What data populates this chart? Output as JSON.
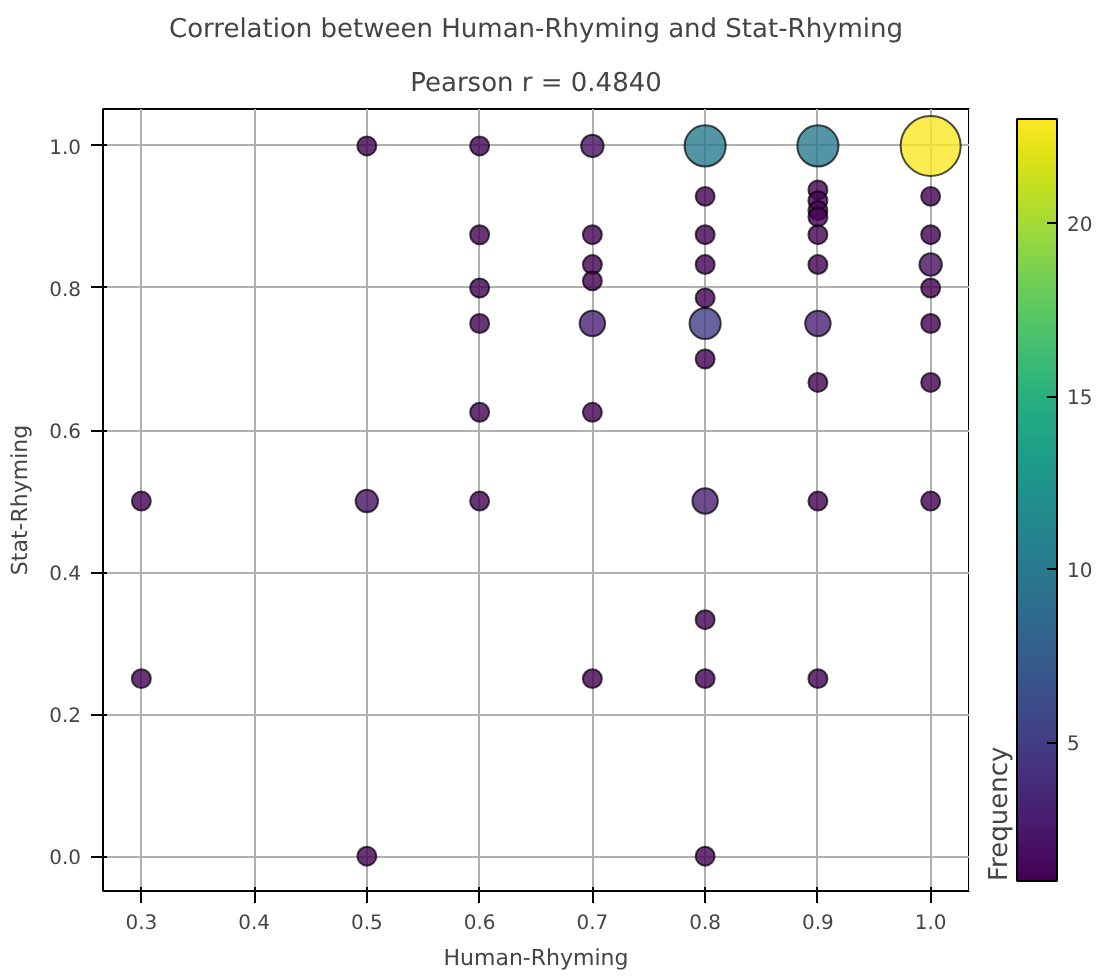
{
  "chart_data": {
    "type": "bubble",
    "title": "Correlation between Human-Rhyming and Stat-Rhyming",
    "subtitle": "Pearson r = 0.4840",
    "xlabel": "Human-Rhyming",
    "ylabel": "Stat-Rhyming",
    "clabel": "Frequency",
    "x": [
      0.3,
      0.3,
      0.5,
      0.5,
      0.5,
      0.6,
      0.6,
      0.6,
      0.6,
      0.6,
      0.6,
      0.7,
      0.7,
      0.7,
      0.7,
      0.7,
      0.7,
      0.7,
      0.8,
      0.8,
      0.8,
      0.8,
      0.8,
      0.8,
      0.8,
      0.8,
      0.8,
      0.8,
      0.8,
      0.9,
      0.9,
      0.9,
      0.9,
      0.9,
      0.9,
      0.9,
      0.9,
      0.9,
      0.9,
      0.9,
      1.0,
      1.0,
      1.0,
      1.0,
      1.0,
      1.0,
      1.0,
      1.0
    ],
    "values": [
      0.5,
      0.25,
      1.0,
      0.5,
      0.0,
      1.0,
      0.875,
      0.8,
      0.75,
      0.625,
      0.5,
      1.0,
      0.875,
      0.833,
      0.81,
      0.75,
      0.625,
      0.25,
      1.0,
      0.929,
      0.875,
      0.833,
      0.786,
      0.75,
      0.7,
      0.5,
      0.333,
      0.25,
      0.0,
      1.0,
      0.938,
      0.923,
      0.909,
      0.9,
      0.875,
      0.833,
      0.75,
      0.667,
      0.5,
      0.25,
      1.0,
      0.929,
      0.875,
      0.833,
      0.8,
      0.75,
      0.667,
      0.5
    ],
    "cvalues": [
      1,
      1,
      1,
      2,
      1,
      1,
      1,
      1,
      1,
      1,
      1,
      2,
      1,
      1,
      1,
      3,
      1,
      1,
      10,
      1,
      1,
      1,
      1,
      5,
      1,
      3,
      1,
      1,
      1,
      10,
      1,
      1,
      1,
      1,
      1,
      1,
      3,
      1,
      1,
      1,
      23,
      1,
      1,
      2,
      1,
      1,
      1,
      1
    ],
    "sizes": [
      0.1,
      0.1,
      0.1,
      0.14,
      0.1,
      0.1,
      0.1,
      0.1,
      0.1,
      0.1,
      0.1,
      0.14,
      0.1,
      0.1,
      0.1,
      0.18,
      0.1,
      0.1,
      0.47,
      0.1,
      0.1,
      0.1,
      0.1,
      0.27,
      0.1,
      0.18,
      0.1,
      0.1,
      0.1,
      0.47,
      0.1,
      0.1,
      0.1,
      0.1,
      0.1,
      0.1,
      0.18,
      0.1,
      0.1,
      0.1,
      1.0,
      0.1,
      0.1,
      0.14,
      0.1,
      0.1,
      0.1,
      0.1
    ],
    "clim": [
      1,
      23
    ],
    "cticks": [
      5,
      10,
      15,
      20
    ],
    "xlim": [
      0.266,
      1.034
    ],
    "xticks": [
      0.3,
      0.4,
      0.5,
      0.6,
      0.7,
      0.8,
      0.9,
      {
        "value": 1,
        "label": "1.0"
      }
    ],
    "ylim": [
      -0.049,
      1.052
    ],
    "yticks": [
      {
        "value": 0,
        "label": "0.0"
      },
      0.2,
      0.4,
      0.6,
      0.8,
      {
        "value": 1,
        "label": "1.0"
      }
    ],
    "grid": true
  }
}
